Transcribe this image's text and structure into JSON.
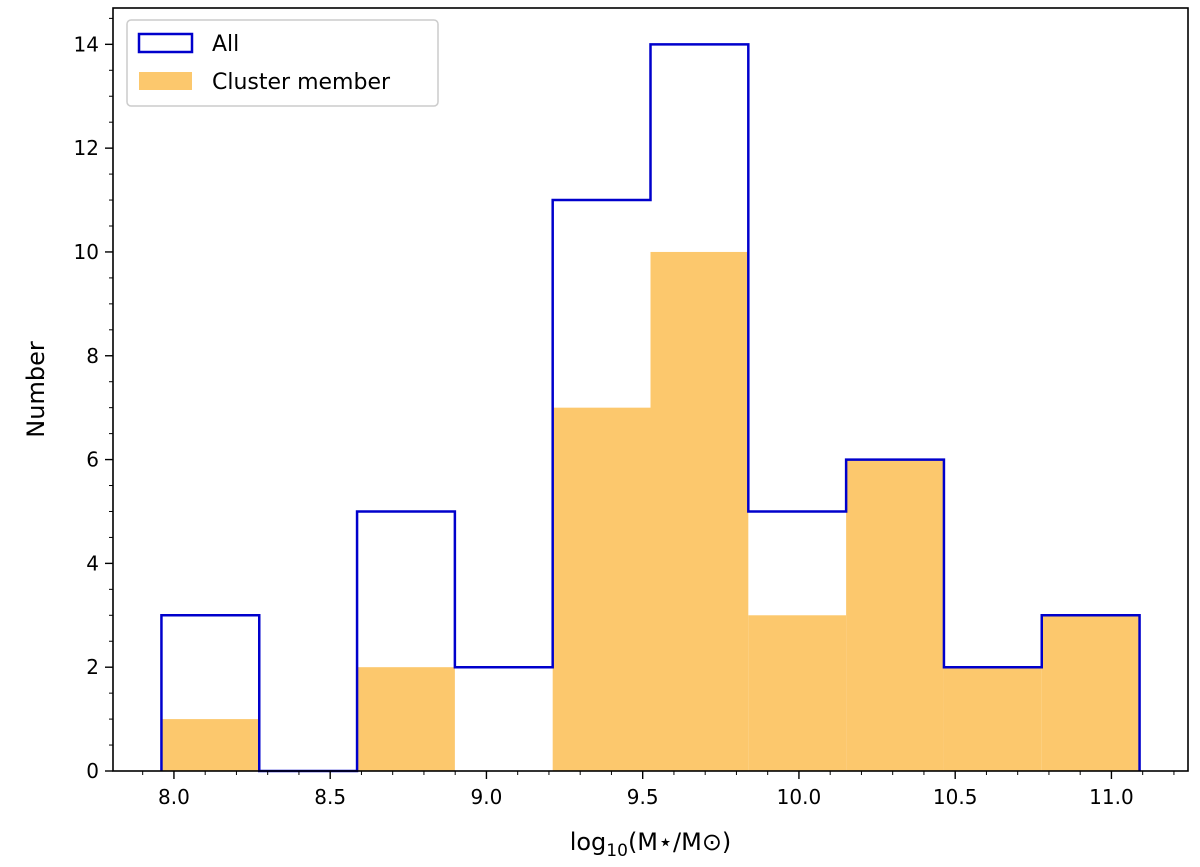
{
  "chart_data": {
    "type": "bar",
    "subtype": "histogram",
    "bin_edges": [
      7.96,
      8.273,
      8.586,
      8.899,
      9.212,
      9.525,
      9.838,
      10.151,
      10.464,
      10.777,
      11.09
    ],
    "series": [
      {
        "name": "All",
        "style": "step",
        "color": "#0000cc",
        "values": [
          3,
          0,
          5,
          2,
          11,
          14,
          5,
          6,
          2,
          3
        ]
      },
      {
        "name": "Cluster member",
        "style": "filled",
        "color": "#fcc565",
        "values": [
          1,
          0,
          2,
          0,
          7,
          10,
          3,
          6,
          2,
          3
        ]
      }
    ],
    "xlabel_main": "log",
    "xlabel_sub": "10",
    "xlabel_rest": "(M⋆/M⊙)",
    "ylabel": "Number",
    "xlim": [
      7.805,
      11.245
    ],
    "ylim": [
      0,
      14.7
    ],
    "xticks": [
      8.0,
      8.5,
      9.0,
      9.5,
      10.0,
      10.5,
      11.0
    ],
    "xtick_labels": [
      "8.0",
      "8.5",
      "9.0",
      "9.5",
      "10.0",
      "10.5",
      "11.0"
    ],
    "yticks": [
      0,
      2,
      4,
      6,
      8,
      10,
      12,
      14
    ],
    "ytick_labels": [
      "0",
      "2",
      "4",
      "6",
      "8",
      "10",
      "12",
      "14"
    ],
    "legend_position": "top-left",
    "grid": false
  }
}
